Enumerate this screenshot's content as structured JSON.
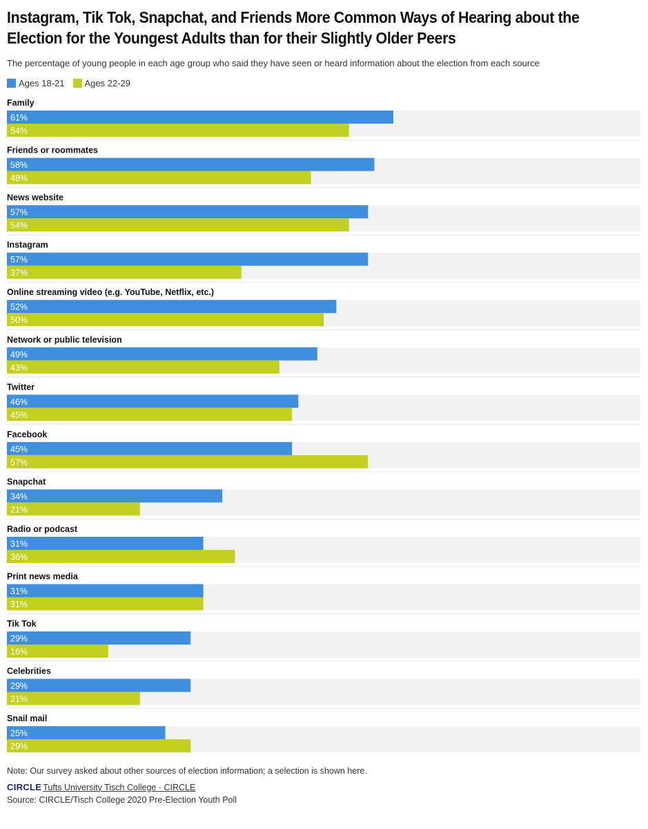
{
  "title": "Instagram, Tik Tok, Snapchat, and Friends More Common Ways of Hearing about the Election for the Youngest Adults than for their Slightly Older Peers",
  "subtitle": "The percentage of young people in each age group who said they have seen or heard information about the election from each source",
  "legend": [
    {
      "label": "Ages 18-21",
      "color": "#3f8ee0"
    },
    {
      "label": "Ages 22-29",
      "color": "#c3d01f"
    }
  ],
  "note": "Note: Our survey asked about other sources of election information; a selection is shown here.",
  "brand": {
    "logo_text": "CIRCLE",
    "link_text": "Tufts University Tisch College · CIRCLE"
  },
  "source": "Source: CIRCLE/Tisch College 2020 Pre-Election Youth Poll",
  "chart_data": {
    "type": "bar",
    "orientation": "horizontal",
    "title": "Instagram, Tik Tok, Snapchat, and Friends More Common Ways of Hearing about the Election for the Youngest Adults than for their Slightly Older Peers",
    "xlim": [
      0,
      100
    ],
    "value_suffix": "%",
    "categories": [
      "Family",
      "Friends or roommates",
      "News website",
      "Instagram",
      "Online streaming video (e.g. YouTube, Netflix, etc.)",
      "Network or public television",
      "Twitter",
      "Facebook",
      "Snapchat",
      "Radio or podcast",
      "Print news media",
      "Tik Tok",
      "Celebrities",
      "Snail mail"
    ],
    "series": [
      {
        "name": "Ages 18-21",
        "color": "#3f8ee0",
        "values": [
          61,
          58,
          57,
          57,
          52,
          49,
          46,
          45,
          34,
          31,
          31,
          29,
          29,
          25
        ]
      },
      {
        "name": "Ages 22-29",
        "color": "#c3d01f",
        "values": [
          54,
          48,
          54,
          37,
          50,
          43,
          45,
          57,
          21,
          36,
          31,
          16,
          21,
          29
        ]
      }
    ]
  }
}
